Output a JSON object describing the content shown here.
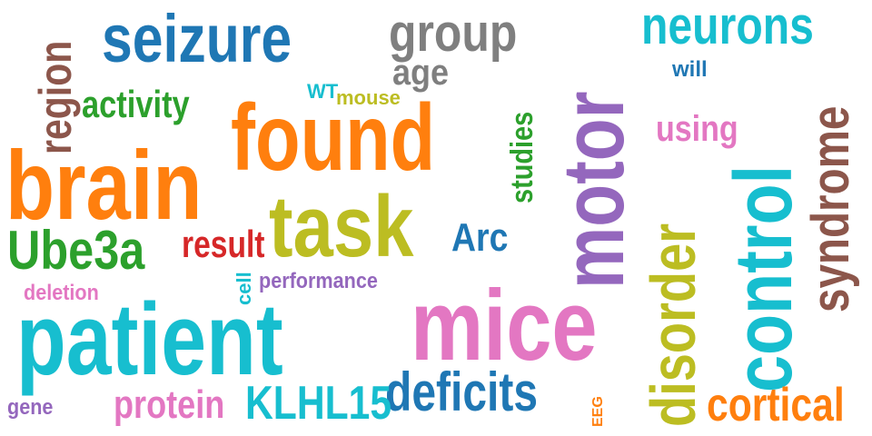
{
  "words": [
    {
      "text": "seizure",
      "color": "#1f77b4"
    },
    {
      "text": "group",
      "color": "#7f7f7f"
    },
    {
      "text": "age",
      "color": "#7f7f7f"
    },
    {
      "text": "motor",
      "color": "#9467bd"
    },
    {
      "text": "neurons",
      "color": "#17becf"
    },
    {
      "text": "will",
      "color": "#1f77b4"
    },
    {
      "text": "region",
      "color": "#8c564b"
    },
    {
      "text": "activity",
      "color": "#2ca02c"
    },
    {
      "text": "WT",
      "color": "#17becf"
    },
    {
      "text": "mouse",
      "color": "#bcbd22"
    },
    {
      "text": "studies",
      "color": "#2ca02c"
    },
    {
      "text": "control",
      "color": "#17becf"
    },
    {
      "text": "syndrome",
      "color": "#8c564b"
    },
    {
      "text": "using",
      "color": "#e377c2"
    },
    {
      "text": "found",
      "color": "#ff7f0e"
    },
    {
      "text": "brain",
      "color": "#ff7f0e"
    },
    {
      "text": "task",
      "color": "#bcbd22"
    },
    {
      "text": "Arc",
      "color": "#1f77b4"
    },
    {
      "text": "disorder",
      "color": "#bcbd22"
    },
    {
      "text": "Ube3a",
      "color": "#2ca02c"
    },
    {
      "text": "result",
      "color": "#d62728"
    },
    {
      "text": "cell",
      "color": "#17becf"
    },
    {
      "text": "performance",
      "color": "#9467bd"
    },
    {
      "text": "deletion",
      "color": "#e377c2"
    },
    {
      "text": "mice",
      "color": "#e377c2"
    },
    {
      "text": "patient",
      "color": "#17becf"
    },
    {
      "text": "deficits",
      "color": "#1f77b4"
    },
    {
      "text": "EEG",
      "color": "#ff7f0e"
    },
    {
      "text": "cortical",
      "color": "#ff7f0e"
    },
    {
      "text": "protein",
      "color": "#e377c2"
    },
    {
      "text": "KLHL15",
      "color": "#17becf"
    },
    {
      "text": "gene",
      "color": "#9467bd"
    }
  ]
}
